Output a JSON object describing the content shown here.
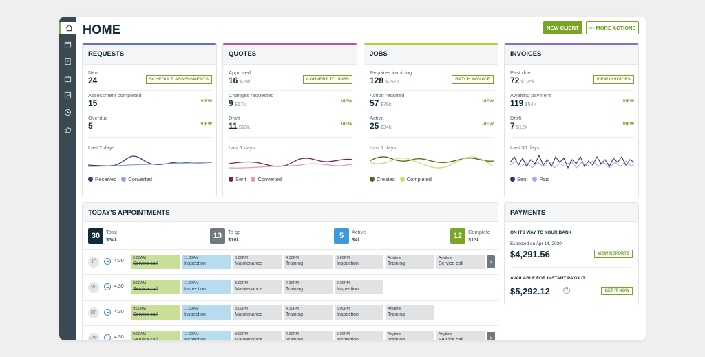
{
  "page": {
    "title": "HOME",
    "new_client": "NEW CLIENT",
    "more_actions": "••• MORE ACTIONS"
  },
  "colors": {
    "requests": "#5d73c8",
    "quotes": "#b35a92",
    "jobs": "#b8c93a",
    "invoices": "#8b6fc4",
    "accent": "#7aa424"
  },
  "sidebar": {
    "icons": [
      "home-icon",
      "calendar-icon",
      "clients-icon",
      "briefcase-icon",
      "chart-icon",
      "clock-icon",
      "thumbs-up-icon"
    ]
  },
  "requests": {
    "title": "REQUESTS",
    "s1": {
      "label": "New",
      "value": "24",
      "link": "SCHEDULE ASSESSMENTS"
    },
    "s2": {
      "label": "Assessment completed",
      "value": "15",
      "link": "VIEW"
    },
    "s3": {
      "label": "Overdue",
      "value": "5",
      "link": "VIEW"
    },
    "period": "Last 7 days",
    "legend1": "Received",
    "legend2": "Converted"
  },
  "quotes": {
    "title": "QUOTES",
    "s1": {
      "label": "Approved",
      "value": "16",
      "sub": "$29k",
      "link": "CONVERT TO JOBS"
    },
    "s2": {
      "label": "Changes requested",
      "value": "9",
      "sub": "$17k",
      "link": "VIEW"
    },
    "s3": {
      "label": "Draft",
      "value": "11",
      "sub": "$19k",
      "link": "VIEW"
    },
    "period": "Last 7 days",
    "legend1": "Sent",
    "legend2": "Converted"
  },
  "jobs": {
    "title": "JOBS",
    "s1": {
      "label": "Requires invoicing",
      "value": "128",
      "sub": "$257k",
      "link": "BATCH INVOICE"
    },
    "s2": {
      "label": "Action required",
      "value": "57",
      "sub": "$76k",
      "link": "VIEW"
    },
    "s3": {
      "label": "Active",
      "value": "25",
      "sub": "$34k",
      "link": "VIEW"
    },
    "period": "Last 7 days",
    "legend1": "Created",
    "legend2": "Completed"
  },
  "invoices": {
    "title": "INVOICES",
    "s1": {
      "label": "Past due",
      "value": "72",
      "sub": "$125k",
      "link": "VIEW INVOICES"
    },
    "s2": {
      "label": "Awaiting payment",
      "value": "119",
      "sub": "$54k",
      "link": "VIEW"
    },
    "s3": {
      "label": "Draft",
      "value": "7",
      "sub": "$12k",
      "link": "VIEW"
    },
    "period": "Last 30 days",
    "legend1": "Sent",
    "legend2": "Paid"
  },
  "appointments": {
    "title": "TODAY'S APPOINTMENTS",
    "summary": [
      {
        "count": "30",
        "label": "Total",
        "value": "$34k",
        "color": "#0f2a3a"
      },
      {
        "count": "13",
        "label": "To go",
        "value": "$16k",
        "color": "#6e7a80"
      },
      {
        "count": "5",
        "label": "Active",
        "value": "$4k",
        "color": "#3d9ad8"
      },
      {
        "count": "12",
        "label": "Complete",
        "value": "$13k",
        "color": "#7aa424"
      }
    ],
    "rows": [
      {
        "initials": "JF",
        "duration": "4:30",
        "blocks": [
          {
            "time": "9:00AM",
            "name": "Service call",
            "kind": "g"
          },
          {
            "time": "11:00AM",
            "name": "Inspection",
            "kind": "b"
          },
          {
            "time": "3:00PM",
            "name": "Maintenance",
            "kind": ""
          },
          {
            "time": "4:30PM",
            "name": "Training",
            "kind": ""
          },
          {
            "time": "5:00PM",
            "name": "Inspection",
            "kind": ""
          },
          {
            "time": "Anytime",
            "name": "Training",
            "kind": ""
          },
          {
            "time": "Anytime",
            "name": "Service call",
            "kind": ""
          }
        ]
      },
      {
        "initials": "VL",
        "duration": "4:30",
        "blocks": [
          {
            "time": "9:00AM",
            "name": "Service call",
            "kind": "g"
          },
          {
            "time": "11:00AM",
            "name": "Inspection",
            "kind": "b"
          },
          {
            "time": "3:00PM",
            "name": "Maintenance",
            "kind": ""
          },
          {
            "time": "4:30PM",
            "name": "Training",
            "kind": ""
          },
          {
            "time": "5:00PM",
            "name": "Inspection",
            "kind": ""
          }
        ]
      },
      {
        "initials": "RF",
        "duration": "4:30",
        "blocks": [
          {
            "time": "9:00AM",
            "name": "Service call",
            "kind": "g"
          },
          {
            "time": "11:00AM",
            "name": "Inspection",
            "kind": "b"
          },
          {
            "time": "3:00PM",
            "name": "Maintenance",
            "kind": ""
          },
          {
            "time": "4:30PM",
            "name": "Training",
            "kind": ""
          },
          {
            "time": "5:00PM",
            "name": "Inspection",
            "kind": ""
          },
          {
            "time": "Anytime",
            "name": "Training",
            "kind": ""
          }
        ]
      },
      {
        "initials": "JW",
        "duration": "4:30",
        "blocks": [
          {
            "time": "9:00AM",
            "name": "Service call",
            "kind": "g"
          },
          {
            "time": "11:00AM",
            "name": "Inspection",
            "kind": "b"
          },
          {
            "time": "3:00PM",
            "name": "Maintenance",
            "kind": ""
          },
          {
            "time": "4:30PM",
            "name": "Training",
            "kind": ""
          },
          {
            "time": "5:00PM",
            "name": "Inspection",
            "kind": ""
          },
          {
            "time": "Anytime",
            "name": "Training",
            "kind": ""
          },
          {
            "time": "Anytime",
            "name": "Service call",
            "kind": ""
          }
        ]
      }
    ]
  },
  "payments": {
    "title": "PAYMENTS",
    "bank_title": "ON ITS WAY TO YOUR BANK",
    "expected": "Expected on Apr 14, 2020",
    "bank_amount": "$4,291.56",
    "view_reports": "VIEW REPORTS",
    "instant_title": "AVAILABLE FOR INSTANT PAYOUT",
    "instant_amount": "$5,292.12",
    "help": "?",
    "get_it_now": "GET IT NOW"
  }
}
